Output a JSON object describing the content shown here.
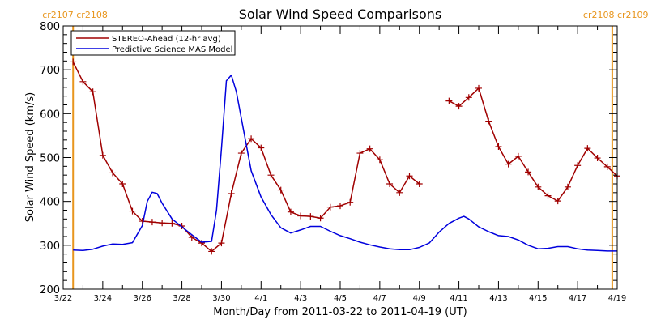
{
  "chart_data": {
    "type": "line",
    "title": "Solar Wind Speed Comparisons",
    "xlabel": "Month/Day from 2011-03-22 to 2011-04-19 (UT)",
    "ylabel": "Solar Wind Speed (km/s)",
    "ylim": [
      200,
      800
    ],
    "xlim": [
      "2011-03-22",
      "2011-04-19"
    ],
    "y_ticks": [
      200,
      300,
      400,
      500,
      600,
      700,
      800
    ],
    "x_ticks": [
      {
        "label": "3/22",
        "x": "2011-03-22"
      },
      {
        "label": "3/24",
        "x": "2011-03-24"
      },
      {
        "label": "3/26",
        "x": "2011-03-26"
      },
      {
        "label": "3/28",
        "x": "2011-03-28"
      },
      {
        "label": "3/30",
        "x": "2011-03-30"
      },
      {
        "label": "4/1",
        "x": "2011-04-01"
      },
      {
        "label": "4/3",
        "x": "2011-04-03"
      },
      {
        "label": "4/5",
        "x": "2011-04-05"
      },
      {
        "label": "4/7",
        "x": "2011-04-07"
      },
      {
        "label": "4/9",
        "x": "2011-04-09"
      },
      {
        "label": "4/11",
        "x": "2011-04-11"
      },
      {
        "label": "4/13",
        "x": "2011-04-13"
      },
      {
        "label": "4/15",
        "x": "2011-04-15"
      },
      {
        "label": "4/17",
        "x": "2011-04-17"
      },
      {
        "label": "4/19",
        "x": "2011-04-19"
      }
    ],
    "legend_position": "top-left",
    "carrington_markers": [
      {
        "label": "cr2107 cr2108",
        "x": "2011-03-22 12:00",
        "color": "#e8961e"
      },
      {
        "label": "cr2108 cr2109",
        "x": "2011-04-18 18:00",
        "color": "#e8961e"
      }
    ],
    "series": [
      {
        "name": "STEREO-Ahead (12-hr avg)",
        "color": "#a00000",
        "marker": "+",
        "segments": [
          [
            [
              "2011-03-22 12:00",
              718
            ],
            [
              "2011-03-23 00:00",
              673
            ],
            [
              "2011-03-23 12:00",
              650
            ],
            [
              "2011-03-24 00:00",
              505
            ],
            [
              "2011-03-24 12:00",
              465
            ],
            [
              "2011-03-25 00:00",
              440
            ],
            [
              "2011-03-25 12:00",
              378
            ],
            [
              "2011-03-26 00:00",
              355
            ],
            [
              "2011-03-26 12:00",
              353
            ],
            [
              "2011-03-27 00:00",
              351
            ],
            [
              "2011-03-27 12:00",
              350
            ],
            [
              "2011-03-28 00:00",
              344
            ],
            [
              "2011-03-28 12:00",
              318
            ],
            [
              "2011-03-29 00:00",
              305
            ],
            [
              "2011-03-29 12:00",
              286
            ],
            [
              "2011-03-30 00:00",
              305
            ],
            [
              "2011-03-30 12:00",
              418
            ],
            [
              "2011-03-31 00:00",
              510
            ],
            [
              "2011-03-31 12:00",
              543
            ],
            [
              "2011-04-01 00:00",
              522
            ],
            [
              "2011-04-01 12:00",
              460
            ],
            [
              "2011-04-02 00:00",
              426
            ],
            [
              "2011-04-02 12:00",
              376
            ],
            [
              "2011-04-03 00:00",
              367
            ],
            [
              "2011-04-03 12:00",
              366
            ],
            [
              "2011-04-04 00:00",
              362
            ],
            [
              "2011-04-04 12:00",
              387
            ],
            [
              "2011-04-05 00:00",
              390
            ],
            [
              "2011-04-05 12:00",
              398
            ],
            [
              "2011-04-06 00:00",
              510
            ],
            [
              "2011-04-06 12:00",
              520
            ],
            [
              "2011-04-07 00:00",
              495
            ],
            [
              "2011-04-07 12:00",
              440
            ],
            [
              "2011-04-08 00:00",
              420
            ],
            [
              "2011-04-08 12:00",
              458
            ],
            [
              "2011-04-09 00:00",
              440
            ]
          ],
          [
            [
              "2011-04-10 12:00",
              629
            ],
            [
              "2011-04-11 00:00",
              617
            ],
            [
              "2011-04-11 12:00",
              637
            ],
            [
              "2011-04-12 00:00",
              658
            ],
            [
              "2011-04-12 12:00",
              583
            ],
            [
              "2011-04-13 00:00",
              525
            ],
            [
              "2011-04-13 12:00",
              485
            ],
            [
              "2011-04-14 00:00",
              503
            ],
            [
              "2011-04-14 12:00",
              467
            ],
            [
              "2011-04-15 00:00",
              433
            ],
            [
              "2011-04-15 12:00",
              413
            ],
            [
              "2011-04-16 00:00",
              401
            ],
            [
              "2011-04-16 12:00",
              433
            ],
            [
              "2011-04-17 00:00",
              482
            ],
            [
              "2011-04-17 12:00",
              521
            ],
            [
              "2011-04-18 00:00",
              499
            ],
            [
              "2011-04-18 12:00",
              479
            ],
            [
              "2011-04-19 00:00",
              458
            ]
          ]
        ]
      },
      {
        "name": "Predictive Science MAS Model",
        "color": "#0000dd",
        "marker": "none",
        "segments": [
          [
            [
              "2011-03-22 12:00",
              289
            ],
            [
              "2011-03-23 00:00",
              288
            ],
            [
              "2011-03-23 12:00",
              291
            ],
            [
              "2011-03-24 00:00",
              298
            ],
            [
              "2011-03-24 12:00",
              303
            ],
            [
              "2011-03-25 00:00",
              302
            ],
            [
              "2011-03-25 12:00",
              306
            ],
            [
              "2011-03-26 00:00",
              345
            ],
            [
              "2011-03-26 06:00",
              400
            ],
            [
              "2011-03-26 12:00",
              421
            ],
            [
              "2011-03-26 18:00",
              418
            ],
            [
              "2011-03-27 00:00",
              396
            ],
            [
              "2011-03-27 12:00",
              360
            ],
            [
              "2011-03-28 00:00",
              342
            ],
            [
              "2011-03-28 12:00",
              324
            ],
            [
              "2011-03-29 00:00",
              307
            ],
            [
              "2011-03-29 12:00",
              309
            ],
            [
              "2011-03-29 18:00",
              380
            ],
            [
              "2011-03-30 00:00",
              520
            ],
            [
              "2011-03-30 06:00",
              675
            ],
            [
              "2011-03-30 12:00",
              688
            ],
            [
              "2011-03-30 18:00",
              650
            ],
            [
              "2011-03-31 00:00",
              590
            ],
            [
              "2011-03-31 12:00",
              470
            ],
            [
              "2011-04-01 00:00",
              410
            ],
            [
              "2011-04-01 12:00",
              370
            ],
            [
              "2011-04-02 00:00",
              340
            ],
            [
              "2011-04-02 12:00",
              328
            ],
            [
              "2011-04-03 00:00",
              335
            ],
            [
              "2011-04-03 12:00",
              343
            ],
            [
              "2011-04-04 00:00",
              343
            ],
            [
              "2011-04-04 12:00",
              332
            ],
            [
              "2011-04-05 00:00",
              322
            ],
            [
              "2011-04-05 12:00",
              315
            ],
            [
              "2011-04-06 00:00",
              307
            ],
            [
              "2011-04-06 12:00",
              301
            ],
            [
              "2011-04-07 00:00",
              296
            ],
            [
              "2011-04-07 12:00",
              292
            ],
            [
              "2011-04-08 00:00",
              290
            ],
            [
              "2011-04-08 12:00",
              290
            ],
            [
              "2011-04-09 00:00",
              295
            ],
            [
              "2011-04-09 12:00",
              305
            ],
            [
              "2011-04-10 00:00",
              330
            ],
            [
              "2011-04-10 12:00",
              350
            ],
            [
              "2011-04-11 00:00",
              362
            ],
            [
              "2011-04-11 06:00",
              366
            ],
            [
              "2011-04-11 12:00",
              360
            ],
            [
              "2011-04-12 00:00",
              342
            ],
            [
              "2011-04-12 12:00",
              331
            ],
            [
              "2011-04-13 00:00",
              322
            ],
            [
              "2011-04-13 12:00",
              320
            ],
            [
              "2011-04-14 00:00",
              312
            ],
            [
              "2011-04-14 12:00",
              300
            ],
            [
              "2011-04-15 00:00",
              292
            ],
            [
              "2011-04-15 12:00",
              293
            ],
            [
              "2011-04-16 00:00",
              297
            ],
            [
              "2011-04-16 12:00",
              297
            ],
            [
              "2011-04-17 00:00",
              292
            ],
            [
              "2011-04-17 12:00",
              289
            ],
            [
              "2011-04-18 00:00",
              288
            ],
            [
              "2011-04-18 12:00",
              287
            ],
            [
              "2011-04-19 00:00",
              287
            ]
          ]
        ]
      }
    ]
  }
}
